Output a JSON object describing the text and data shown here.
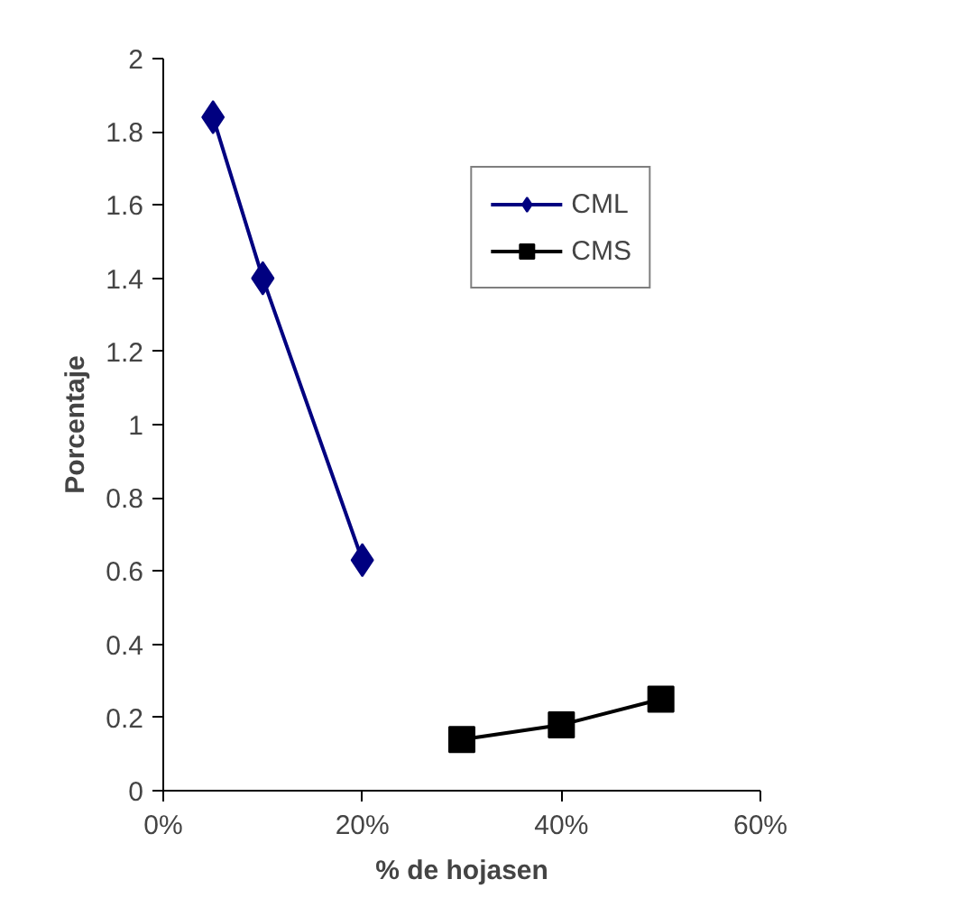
{
  "chart_data": {
    "type": "line",
    "xlabel": "% de hojasen",
    "ylabel": "Porcentaje",
    "series": [
      {
        "name": "CML",
        "color": "#000080",
        "marker": "diamond",
        "x": [
          0.05,
          0.1,
          0.2
        ],
        "values": [
          1.84,
          1.4,
          0.63
        ]
      },
      {
        "name": "CMS",
        "color": "#000000",
        "marker": "square",
        "x": [
          0.3,
          0.4,
          0.5
        ],
        "values": [
          0.14,
          0.18,
          0.25
        ]
      }
    ],
    "xlim": [
      0,
      0.6
    ],
    "xticks": [
      {
        "value": 0,
        "label": "0%"
      },
      {
        "value": 0.2,
        "label": "20%"
      },
      {
        "value": 0.4,
        "label": "40%"
      },
      {
        "value": 0.6,
        "label": "60%"
      }
    ],
    "ylim": [
      0,
      2
    ],
    "yticks": [
      0,
      0.2,
      0.4,
      0.6,
      0.8,
      1,
      1.2,
      1.4,
      1.6,
      1.8,
      2
    ],
    "grid": false,
    "legend": "top right",
    "line_style": "solid"
  }
}
